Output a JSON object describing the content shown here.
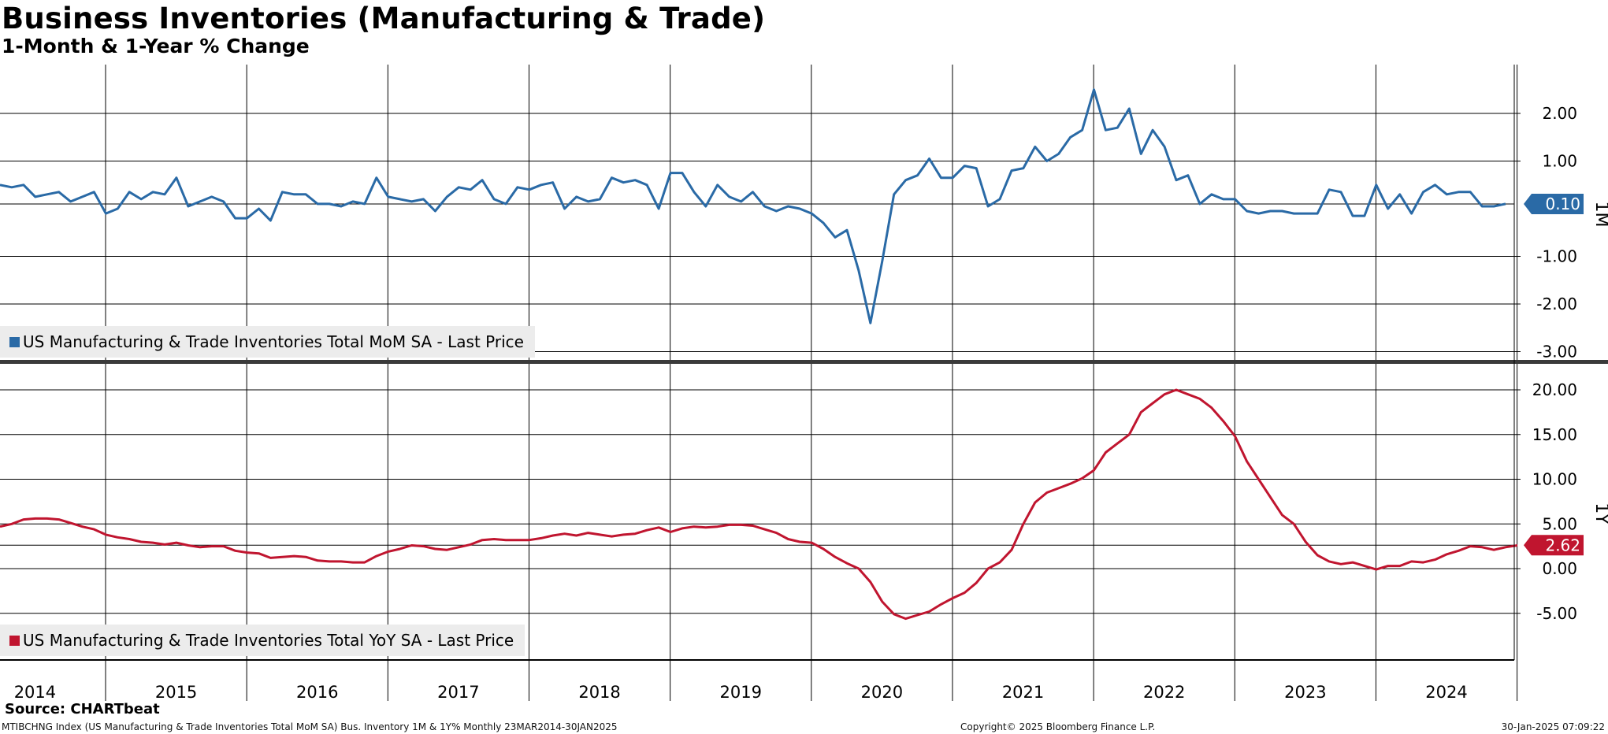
{
  "title": "Business Inventories (Manufacturing & Trade)",
  "subtitle": "1-Month & 1-Year % Change",
  "source_label": "Source: CHARTbeat",
  "footer": {
    "left": "MTIBCHNG Index (US Manufacturing & Trade Inventories Total MoM SA) Bus. Inventory 1M & 1Y%  Monthly 23MAR2014-30JAN2025",
    "center": "Copyright© 2025 Bloomberg Finance L.P.",
    "right": "30-Jan-2025 07:09:22"
  },
  "colors": {
    "mom": "#2a6aa6",
    "yoy": "#c0152f",
    "grid": "#000000",
    "legend_bg": "#ececec"
  },
  "chart_data": [
    {
      "type": "line",
      "panel_label": "1M",
      "x_start": "2014-03",
      "x_frequency": "monthly",
      "x_ticks": [
        "2014",
        "2015",
        "2016",
        "2017",
        "2018",
        "2019",
        "2020",
        "2021",
        "2022",
        "2023",
        "2024"
      ],
      "y_ticks": [
        "2.00",
        "1.00",
        "0.10",
        "-1.00",
        "-2.00",
        "-3.00"
      ],
      "ylim": [
        -3.0,
        3.0
      ],
      "last_value_label": "0.10",
      "series": [
        {
          "name": "US Manufacturing & Trade Inventories Total MoM SA - Last Price",
          "values": [
            0.5,
            0.45,
            0.5,
            0.25,
            0.3,
            0.35,
            0.15,
            0.25,
            0.35,
            -0.1,
            0.0,
            0.35,
            0.2,
            0.35,
            0.3,
            0.65,
            0.05,
            0.15,
            0.25,
            0.15,
            -0.2,
            -0.2,
            0.0,
            -0.25,
            0.35,
            0.3,
            0.3,
            0.1,
            0.1,
            0.05,
            0.15,
            0.1,
            0.65,
            0.25,
            0.2,
            0.15,
            0.2,
            -0.05,
            0.25,
            0.45,
            0.4,
            0.6,
            0.2,
            0.1,
            0.45,
            0.4,
            0.5,
            0.55,
            0.0,
            0.25,
            0.15,
            0.2,
            0.65,
            0.55,
            0.6,
            0.5,
            0.0,
            0.75,
            0.75,
            0.35,
            0.05,
            0.5,
            0.25,
            0.15,
            0.35,
            0.05,
            -0.05,
            0.05,
            0.0,
            -0.1,
            -0.3,
            -0.6,
            -0.45,
            -1.3,
            -2.4,
            -1.1,
            0.3,
            0.6,
            0.7,
            1.05,
            0.65,
            0.65,
            0.9,
            0.85,
            0.05,
            0.2,
            0.8,
            0.85,
            1.3,
            1.0,
            1.15,
            1.5,
            1.65,
            2.5,
            1.65,
            1.7,
            2.1,
            1.15,
            1.65,
            1.3,
            0.6,
            0.7,
            0.1,
            0.3,
            0.2,
            0.2,
            -0.05,
            -0.1,
            -0.05,
            -0.05,
            -0.1,
            -0.1,
            -0.1,
            0.4,
            0.35,
            -0.15,
            -0.15,
            0.5,
            0.0,
            0.3,
            -0.1,
            0.35,
            0.5,
            0.3,
            0.35,
            0.35,
            0.05,
            0.05,
            0.1
          ]
        }
      ]
    },
    {
      "type": "line",
      "panel_label": "1Y",
      "x_start": "2014-03",
      "x_frequency": "monthly",
      "x_ticks": [
        "2014",
        "2015",
        "2016",
        "2017",
        "2018",
        "2019",
        "2020",
        "2021",
        "2022",
        "2023",
        "2024"
      ],
      "y_ticks": [
        "20.00",
        "15.00",
        "10.00",
        "5.00",
        "2.62",
        "0.00",
        "-5.00"
      ],
      "ylim": [
        -10.0,
        20.0
      ],
      "last_value_label": "2.62",
      "series": [
        {
          "name": "US Manufacturing & Trade Inventories Total YoY SA - Last Price",
          "values": [
            4.7,
            5.0,
            5.5,
            5.6,
            5.6,
            5.5,
            5.1,
            4.7,
            4.4,
            3.8,
            3.5,
            3.3,
            3.0,
            2.9,
            2.7,
            2.9,
            2.6,
            2.4,
            2.5,
            2.5,
            2.0,
            1.8,
            1.7,
            1.2,
            1.3,
            1.4,
            1.3,
            0.9,
            0.8,
            0.8,
            0.7,
            0.7,
            1.4,
            1.9,
            2.2,
            2.6,
            2.5,
            2.2,
            2.1,
            2.4,
            2.7,
            3.2,
            3.3,
            3.2,
            3.2,
            3.2,
            3.4,
            3.7,
            3.9,
            3.7,
            4.0,
            3.8,
            3.6,
            3.8,
            3.9,
            4.3,
            4.6,
            4.1,
            4.5,
            4.7,
            4.6,
            4.7,
            4.9,
            4.9,
            4.8,
            4.4,
            4.0,
            3.3,
            3.0,
            2.9,
            2.2,
            1.3,
            0.6,
            0.0,
            -1.5,
            -3.7,
            -5.1,
            -5.6,
            -5.2,
            -4.8,
            -4.0,
            -3.3,
            -2.7,
            -1.6,
            0.0,
            0.7,
            2.1,
            5.0,
            7.4,
            8.5,
            9.0,
            9.5,
            10.1,
            11.0,
            13.0,
            14.0,
            15.0,
            17.5,
            18.5,
            19.5,
            20.0,
            19.5,
            19.0,
            18.0,
            16.5,
            14.8,
            12.0,
            10.0,
            8.0,
            6.0,
            5.0,
            3.0,
            1.5,
            0.8,
            0.5,
            0.7,
            0.3,
            -0.1,
            0.3,
            0.3,
            0.8,
            0.7,
            1.0,
            1.6,
            2.0,
            2.5,
            2.4,
            2.1,
            2.4,
            2.6
          ]
        }
      ]
    }
  ]
}
